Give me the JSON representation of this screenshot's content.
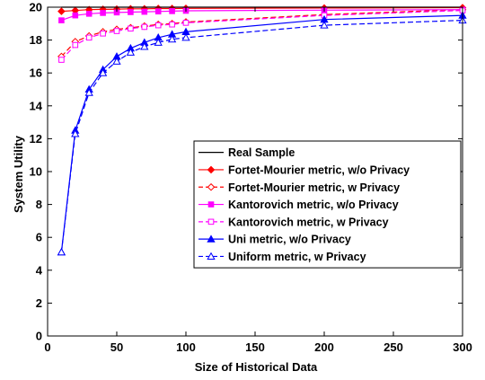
{
  "chart_data": {
    "type": "line",
    "xlabel": "Size of Historical Data",
    "ylabel": "System Utility",
    "xlim": [
      0,
      300
    ],
    "ylim": [
      0,
      20
    ],
    "xticks": [
      "0",
      "50",
      "100",
      "150",
      "200",
      "250",
      "300"
    ],
    "yticks": [
      "0",
      "2",
      "4",
      "6",
      "8",
      "10",
      "12",
      "14",
      "16",
      "18",
      "20"
    ],
    "grid": false,
    "legend_position": "center-right",
    "x": [
      10,
      20,
      30,
      40,
      50,
      60,
      70,
      80,
      90,
      100,
      200,
      300
    ],
    "series": [
      {
        "name": "Real Sample",
        "color": "#000000",
        "dash": "solid",
        "marker": "none",
        "values": [
          20,
          20,
          20,
          20,
          20,
          20,
          20,
          20,
          20,
          20,
          20,
          20
        ]
      },
      {
        "name": "Fortet-Mourier metric, w/o Privacy",
        "color": "#ff0000",
        "dash": "solid",
        "marker": "diamond-filled",
        "values": [
          19.75,
          19.8,
          19.85,
          19.87,
          19.88,
          19.9,
          19.9,
          19.92,
          19.92,
          19.93,
          19.95,
          19.97
        ]
      },
      {
        "name": "Fortet-Mourier metric, w Privacy",
        "color": "#ff0000",
        "dash": "dashed",
        "marker": "diamond-open",
        "values": [
          17.0,
          17.9,
          18.25,
          18.5,
          18.65,
          18.75,
          18.85,
          18.95,
          19.0,
          19.1,
          19.55,
          19.85
        ]
      },
      {
        "name": "Kantorovich metric, w/o Privacy",
        "color": "#ff00ff",
        "dash": "solid",
        "marker": "square-filled",
        "values": [
          19.2,
          19.5,
          19.6,
          19.65,
          19.68,
          19.7,
          19.72,
          19.74,
          19.76,
          19.78,
          19.82,
          19.85
        ]
      },
      {
        "name": "Kantorovich metric, w Privacy",
        "color": "#ff00ff",
        "dash": "dashed",
        "marker": "square-open",
        "values": [
          16.8,
          17.7,
          18.15,
          18.4,
          18.55,
          18.7,
          18.8,
          18.9,
          18.95,
          19.05,
          19.5,
          19.8
        ]
      },
      {
        "name": "Uni metric, w/o Privacy",
        "color": "#0000ff",
        "dash": "solid",
        "marker": "triangle-filled",
        "values": [
          5.1,
          12.5,
          15.0,
          16.2,
          17.0,
          17.5,
          17.85,
          18.15,
          18.35,
          18.5,
          19.25,
          19.5
        ]
      },
      {
        "name": "Uniform metric, w Privacy",
        "color": "#0000ff",
        "dash": "dashed",
        "marker": "triangle-open",
        "values": [
          5.1,
          12.3,
          14.8,
          16.0,
          16.7,
          17.25,
          17.6,
          17.85,
          18.05,
          18.15,
          18.9,
          19.2
        ]
      }
    ]
  }
}
